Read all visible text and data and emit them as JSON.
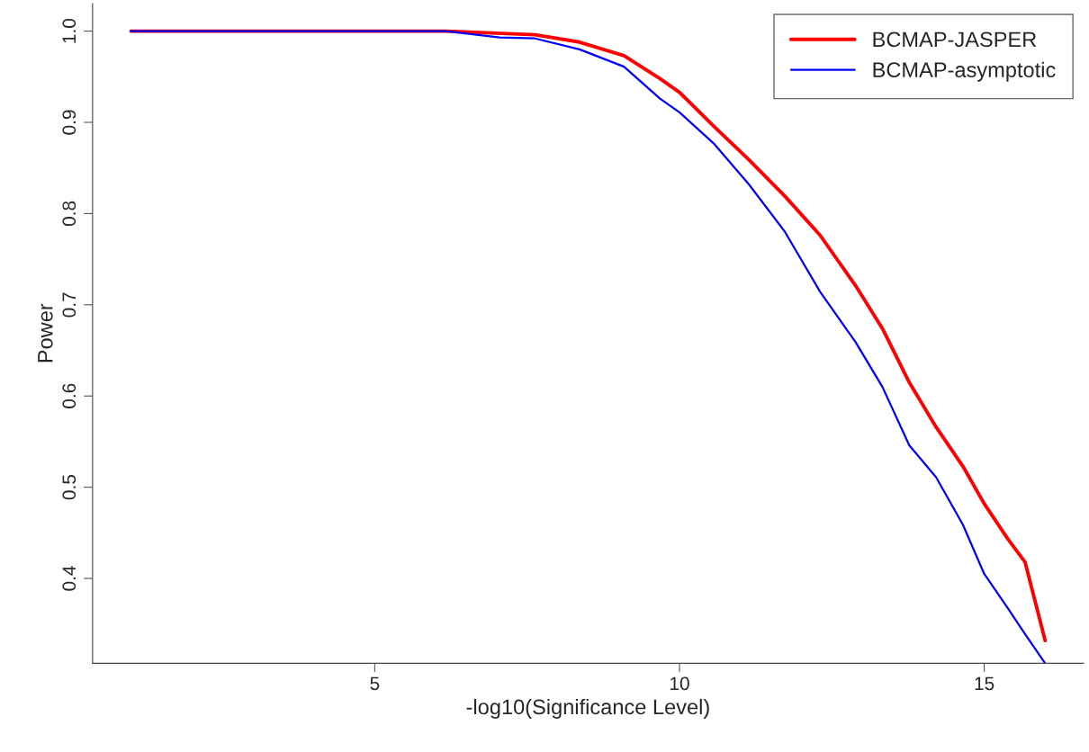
{
  "chart_data": {
    "type": "line",
    "xlabel": "-log10(Significance Level)",
    "ylabel": "Power",
    "xlim": [
      0.37,
      16.63
    ],
    "ylim": [
      0.307,
      1.03
    ],
    "xticks": [
      5,
      10,
      15
    ],
    "yticks": [
      {
        "value": 0.4,
        "label": "0.4"
      },
      {
        "value": 0.5,
        "label": "0.5"
      },
      {
        "value": 0.6,
        "label": "0.6"
      },
      {
        "value": 0.7,
        "label": "0.7"
      },
      {
        "value": 0.8,
        "label": "0.8"
      },
      {
        "value": 0.9,
        "label": "0.9"
      },
      {
        "value": 1.0,
        "label": "1.0"
      }
    ],
    "grid": false,
    "legend": "top right",
    "line_style": "solid",
    "marker": "none",
    "series": [
      {
        "name": "BCMAP-JASPER",
        "color": "#ff0000",
        "x": [
          1,
          6.17,
          7.63,
          8.36,
          9.09,
          9.68,
          10,
          10.56,
          11.14,
          11.73,
          12.31,
          12.89,
          13.33,
          13.77,
          14.21,
          14.65,
          15,
          15.38,
          15.67,
          16
        ],
        "values": [
          1.0,
          1.0,
          0.996,
          0.988,
          0.973,
          0.948,
          0.933,
          0.896,
          0.859,
          0.819,
          0.776,
          0.721,
          0.674,
          0.615,
          0.566,
          0.523,
          0.482,
          0.444,
          0.418,
          0.332
        ]
      },
      {
        "name": "BCMAP-asymptotic",
        "color": "#0000ff",
        "x": [
          1,
          6.17,
          7.05,
          7.63,
          8.36,
          9.09,
          9.68,
          10,
          10.56,
          11.14,
          11.73,
          12.31,
          12.89,
          13.33,
          13.77,
          14.21,
          14.65,
          15,
          15.38,
          15.67,
          16
        ],
        "values": [
          1.0,
          1.0,
          0.993,
          0.992,
          0.98,
          0.961,
          0.926,
          0.911,
          0.877,
          0.832,
          0.78,
          0.714,
          0.659,
          0.61,
          0.546,
          0.511,
          0.459,
          0.405,
          0.368,
          0.339,
          0.307
        ]
      }
    ]
  }
}
